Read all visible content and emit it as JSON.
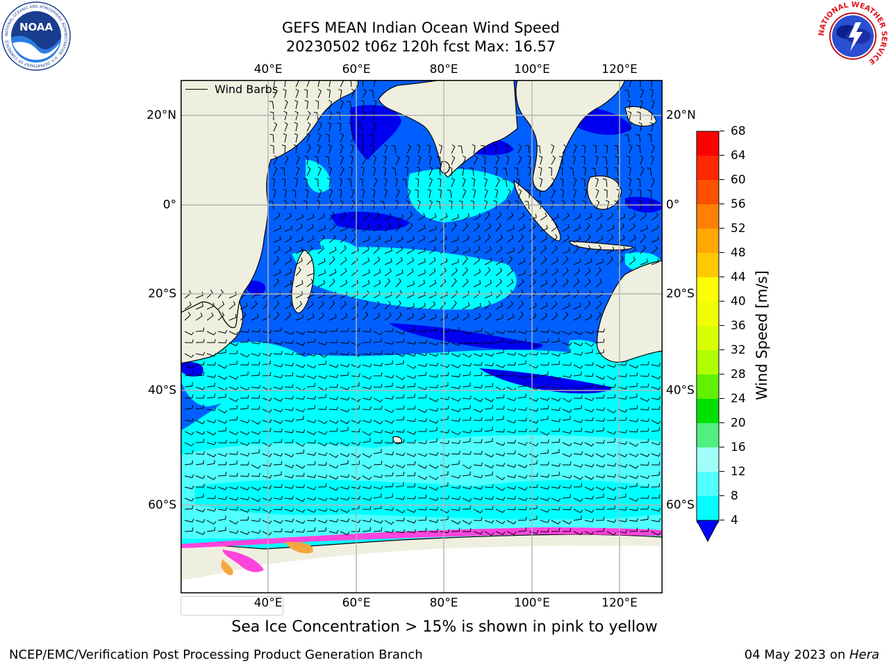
{
  "title": {
    "line1": "GEFS MEAN Indian Ocean Wind Speed",
    "line2": "20230502 t06z 120h fcst   Max: 16.57"
  },
  "map": {
    "lon_ticks_top": [
      "40°E",
      "60°E",
      "80°E",
      "100°E",
      "120°E"
    ],
    "lon_ticks_bottom": [
      "40°E",
      "60°E",
      "80°E",
      "100°E",
      "120°E"
    ],
    "lat_ticks_left": [
      "20°N",
      "0°",
      "20°S",
      "40°S",
      "60°S"
    ],
    "lat_ticks_right": [
      "20°N",
      "0°",
      "20°S",
      "40°S",
      "60°S"
    ],
    "legend_label": "Wind Barbs",
    "colors": {
      "land": "#efefdf",
      "grid": "#b4b4b4",
      "ice_pink": "#ff44dd",
      "ice_orange": "#f4a640"
    }
  },
  "colorbar": {
    "label": "Wind Speed [m/s]",
    "ticks": [
      "68",
      "64",
      "60",
      "56",
      "52",
      "48",
      "44",
      "40",
      "36",
      "32",
      "28",
      "24",
      "20",
      "16",
      "12",
      "8",
      "4"
    ],
    "colors": [
      "#ff0000",
      "#ff2800",
      "#ff5000",
      "#ff8000",
      "#ffa800",
      "#ffc800",
      "#ffff00",
      "#f0ff00",
      "#d8ff00",
      "#b0ff00",
      "#60f000",
      "#00e000",
      "#50f080",
      "#a0fff8",
      "#50ffff",
      "#00ffff",
      "#0060ff"
    ],
    "under_color": "#0000ff"
  },
  "subtitle": "Sea Ice Concentration > 15% is shown in pink to yellow",
  "footer": {
    "left": "NCEP/EMC/Verification Post Processing Product Generation Branch",
    "right_date": "04 May 2023 on ",
    "right_host": "Hera"
  },
  "logos": {
    "noaa": {
      "text": "NOAA",
      "ring_text": "NATIONAL OCEANIC AND ATMOSPHERIC ADMINISTRATION · U.S. DEPARTMENT OF COMMERCE"
    },
    "nws": {
      "ring_text": "NATIONAL WEATHER SERVICE"
    }
  }
}
